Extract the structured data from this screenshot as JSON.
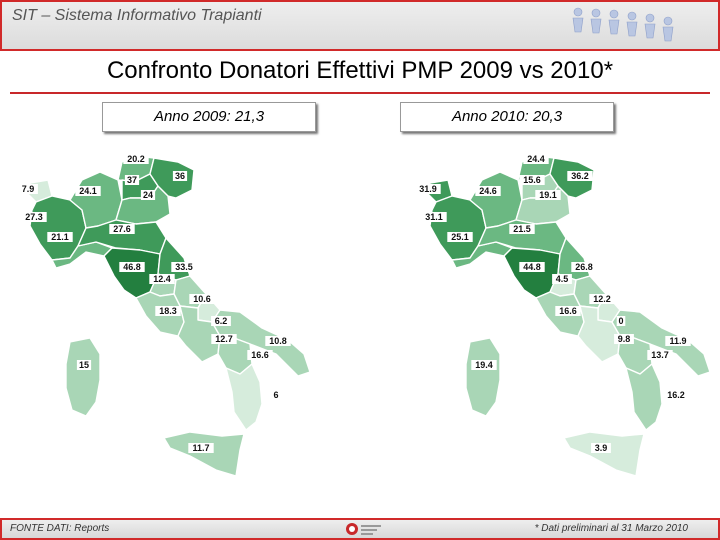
{
  "header": {
    "title": "SIT – Sistema Informativo Trapianti"
  },
  "main_title": "Confronto Donatori Effettivi PMP 2009 vs 2010*",
  "colors": {
    "accent": "#c8282a",
    "darkest": "#237f3f",
    "dark": "#3f9a5a",
    "medium": "#6bb882",
    "light": "#a9d6b6",
    "lightest": "#d6ecdc"
  },
  "maps": [
    {
      "label": "Anno 2009: 21,3",
      "values": {
        "valle_aosta": "7.9",
        "piemonte": "27.3",
        "lombardia": "24.1",
        "trentino": "20.2",
        "bolzano": "37",
        "veneto": "24",
        "friuli": "36",
        "liguria": "21.1",
        "emilia": "27.6",
        "toscana": "46.8",
        "marche": "33.5",
        "umbria": "12.4",
        "abruzzo": "10.6",
        "lazio": "18.3",
        "molise": "6.2",
        "campania": "12.7",
        "puglia": "10.8",
        "basilicata": "16.6",
        "calabria": "6",
        "sardegna": "15",
        "sicilia": "11.7"
      }
    },
    {
      "label": "Anno 2010: 20,3",
      "values": {
        "valle_aosta": "31.9",
        "piemonte": "31.1",
        "lombardia": "24.6",
        "trentino": "24.4",
        "bolzano": "15.6",
        "veneto": "19.1",
        "friuli": "36.2",
        "liguria": "25.1",
        "emilia": "21.5",
        "toscana": "44.8",
        "marche": "26.8",
        "umbria": "4.5",
        "abruzzo": "12.2",
        "lazio": "16.6",
        "molise": "0",
        "campania": "9.8",
        "puglia": "11.9",
        "basilicata": "13.7",
        "calabria": "16.2",
        "sardegna": "19.4",
        "sicilia": "3.9"
      }
    }
  ],
  "footer": {
    "source": "FONTE DATI: Reports",
    "note": "* Dati preliminari al 31 Marzo 2010"
  }
}
